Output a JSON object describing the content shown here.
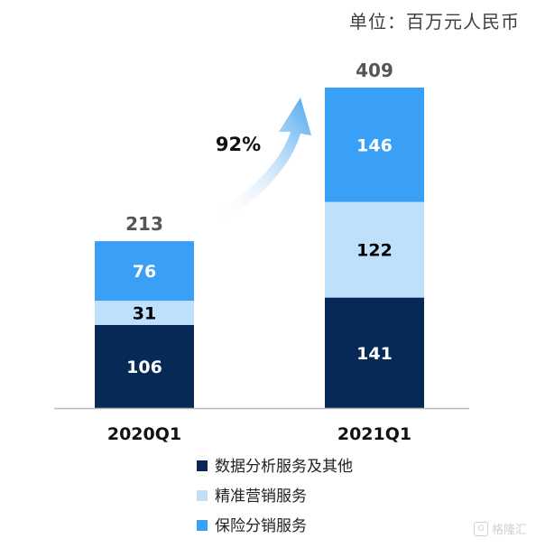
{
  "unit_label": "单位：百万元人民币",
  "growth_label": "92%",
  "watermark": "格隆汇",
  "colors": {
    "dark": "#062a55",
    "light": "#bfe0fb",
    "mid": "#3aa0f5",
    "arrow": "#4aa6ee",
    "total_text": "#555555",
    "axis": "#bbbbbb"
  },
  "chart_data": {
    "type": "bar",
    "stacked": true,
    "categories": [
      "2020Q1",
      "2021Q1"
    ],
    "totals": [
      "213",
      "409"
    ],
    "series": [
      {
        "name": "数据分析服务及其他",
        "color": "#062a55",
        "values": [
          106,
          141
        ],
        "label_color": "#ffffff"
      },
      {
        "name": "精准营销服务",
        "color": "#bfe0fb",
        "values": [
          31,
          122
        ],
        "label_color": "#000000"
      },
      {
        "name": "保险分销服务",
        "color": "#3aa0f5",
        "values": [
          76,
          146
        ],
        "label_color": "#ffffff"
      }
    ],
    "annotation": "92%"
  }
}
